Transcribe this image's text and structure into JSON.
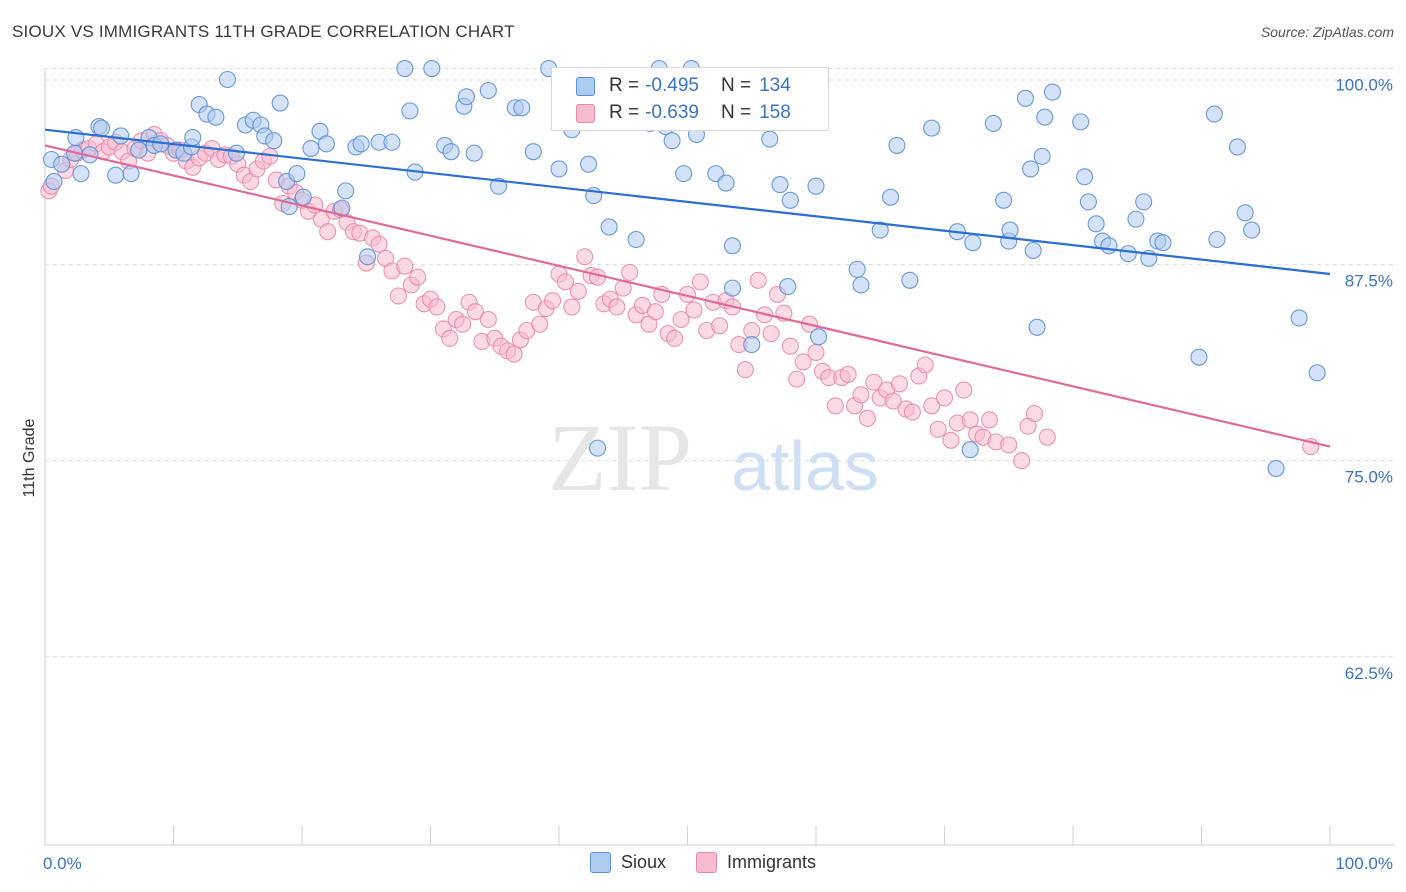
{
  "header": {
    "title": "SIOUX VS IMMIGRANTS 11TH GRADE CORRELATION CHART",
    "source": "Source: ZipAtlas.com"
  },
  "watermark": {
    "zip": "ZIP",
    "atlas": "atlas"
  },
  "legend": {
    "rows": [
      {
        "r_label": "R =",
        "r_value": "-0.495",
        "n_label": "N =",
        "n_value": "134"
      },
      {
        "r_label": "R =",
        "r_value": "-0.639",
        "n_label": "N =",
        "n_value": "158"
      }
    ]
  },
  "bottom_legend": {
    "items": [
      "Sioux",
      "Immigrants"
    ]
  },
  "colors": {
    "sioux_fill": "#aecbf0",
    "sioux_stroke": "#5b8fd6",
    "sioux_line": "#2a6fd1",
    "imm_fill": "#f7bcd0",
    "imm_stroke": "#e889aa",
    "imm_line": "#e06b98",
    "tick_label": "#3b73c8",
    "grid": "#dcdcdc"
  },
  "chart_data": {
    "type": "scatter",
    "title": "SIOUX VS IMMIGRANTS 11TH GRADE CORRELATION CHART",
    "xlabel": "",
    "ylabel": "11th Grade",
    "xlim": [
      0,
      100
    ],
    "ylim": [
      50.5,
      101.5
    ],
    "x_tick_labels": [
      "0.0%",
      "100.0%"
    ],
    "y_ticks": [
      62.5,
      75.0,
      87.5,
      100.0
    ],
    "y_tick_labels": [
      "62.5%",
      "75.0%",
      "87.5%",
      "100.0%"
    ],
    "grid": "horizontal dashed",
    "legend_placement": "top-center",
    "series": [
      {
        "name": "Sioux",
        "R": -0.495,
        "N": 134,
        "trend": {
          "x": [
            0,
            100
          ],
          "y": [
            96.1,
            86.9
          ]
        },
        "points": [
          [
            0.5,
            94.2
          ],
          [
            0.7,
            92.8
          ],
          [
            1.3,
            93.9
          ],
          [
            2.3,
            94.6
          ],
          [
            2.4,
            95.6
          ],
          [
            2.8,
            93.3
          ],
          [
            3.5,
            94.5
          ],
          [
            4.2,
            96.3
          ],
          [
            4.4,
            96.2
          ],
          [
            5.5,
            93.2
          ],
          [
            5.9,
            95.7
          ],
          [
            6.7,
            93.3
          ],
          [
            7.3,
            94.8
          ],
          [
            8.1,
            95.6
          ],
          [
            8.5,
            95.1
          ],
          [
            9.0,
            95.2
          ],
          [
            10.2,
            94.8
          ],
          [
            10.8,
            94.6
          ],
          [
            11.4,
            95.0
          ],
          [
            11.5,
            95.6
          ],
          [
            12.0,
            97.7
          ],
          [
            12.6,
            97.1
          ],
          [
            13.3,
            96.9
          ],
          [
            14.2,
            99.3
          ],
          [
            14.9,
            94.6
          ],
          [
            15.6,
            96.4
          ],
          [
            16.2,
            96.7
          ],
          [
            16.8,
            96.4
          ],
          [
            17.1,
            95.7
          ],
          [
            17.8,
            95.4
          ],
          [
            18.3,
            97.8
          ],
          [
            18.8,
            92.8
          ],
          [
            19.0,
            91.2
          ],
          [
            19.6,
            93.3
          ],
          [
            20.1,
            91.8
          ],
          [
            20.7,
            94.9
          ],
          [
            21.4,
            96.0
          ],
          [
            21.9,
            95.2
          ],
          [
            23.1,
            91.1
          ],
          [
            23.4,
            92.2
          ],
          [
            24.2,
            95.0
          ],
          [
            24.6,
            95.2
          ],
          [
            25.1,
            88.0
          ],
          [
            26.0,
            95.3
          ],
          [
            27.0,
            95.3
          ],
          [
            28.0,
            100.0
          ],
          [
            28.4,
            97.3
          ],
          [
            28.8,
            93.4
          ],
          [
            30.1,
            100.0
          ],
          [
            31.1,
            95.1
          ],
          [
            31.6,
            94.7
          ],
          [
            32.6,
            97.6
          ],
          [
            32.8,
            98.2
          ],
          [
            33.4,
            94.6
          ],
          [
            34.5,
            98.6
          ],
          [
            35.3,
            92.5
          ],
          [
            36.6,
            97.5
          ],
          [
            37.1,
            97.5
          ],
          [
            38.0,
            94.7
          ],
          [
            39.2,
            100.0
          ],
          [
            40.0,
            93.6
          ],
          [
            41.0,
            96.1
          ],
          [
            41.5,
            97.6
          ],
          [
            42.3,
            93.9
          ],
          [
            42.7,
            91.9
          ],
          [
            43.0,
            75.8
          ],
          [
            43.9,
            89.9
          ],
          [
            46.0,
            89.1
          ],
          [
            47.1,
            96.5
          ],
          [
            47.8,
            100.0
          ],
          [
            48.3,
            96.3
          ],
          [
            48.8,
            95.4
          ],
          [
            49.7,
            93.3
          ],
          [
            50.3,
            100.0
          ],
          [
            50.7,
            95.8
          ],
          [
            52.2,
            93.3
          ],
          [
            53.0,
            92.7
          ],
          [
            53.5,
            86.0
          ],
          [
            53.5,
            88.7
          ],
          [
            55.0,
            82.4
          ],
          [
            56.4,
            95.5
          ],
          [
            57.2,
            92.6
          ],
          [
            57.8,
            86.1
          ],
          [
            58.0,
            91.6
          ],
          [
            60.0,
            92.5
          ],
          [
            60.2,
            82.9
          ],
          [
            63.2,
            87.2
          ],
          [
            63.5,
            86.2
          ],
          [
            65.0,
            89.7
          ],
          [
            65.8,
            91.8
          ],
          [
            66.3,
            95.1
          ],
          [
            67.3,
            86.5
          ],
          [
            69.0,
            96.2
          ],
          [
            71.0,
            89.6
          ],
          [
            72.0,
            75.7
          ],
          [
            72.2,
            88.9
          ],
          [
            73.8,
            96.5
          ],
          [
            74.6,
            91.6
          ],
          [
            75.0,
            89.0
          ],
          [
            75.1,
            89.7
          ],
          [
            76.3,
            98.1
          ],
          [
            76.7,
            93.6
          ],
          [
            76.9,
            88.4
          ],
          [
            77.2,
            83.5
          ],
          [
            77.6,
            94.4
          ],
          [
            77.8,
            96.9
          ],
          [
            78.4,
            98.5
          ],
          [
            80.6,
            96.6
          ],
          [
            80.9,
            93.1
          ],
          [
            81.2,
            91.5
          ],
          [
            81.8,
            90.1
          ],
          [
            82.3,
            89.0
          ],
          [
            82.8,
            88.7
          ],
          [
            84.3,
            88.2
          ],
          [
            84.9,
            90.4
          ],
          [
            85.5,
            91.5
          ],
          [
            85.9,
            87.9
          ],
          [
            86.6,
            89.0
          ],
          [
            87.0,
            88.9
          ],
          [
            89.8,
            81.6
          ],
          [
            91.0,
            97.1
          ],
          [
            91.2,
            89.1
          ],
          [
            92.8,
            95.0
          ],
          [
            93.4,
            90.8
          ],
          [
            93.9,
            89.7
          ],
          [
            95.8,
            74.5
          ],
          [
            97.6,
            84.1
          ],
          [
            99.0,
            80.6
          ]
        ]
      },
      {
        "name": "Immigrants",
        "R": -0.639,
        "N": 158,
        "trend": {
          "x": [
            0,
            100
          ],
          "y": [
            95.1,
            75.9
          ]
        },
        "points": [
          [
            0.3,
            92.2
          ],
          [
            0.5,
            92.5
          ],
          [
            1.6,
            93.5
          ],
          [
            2.0,
            94.2
          ],
          [
            2.5,
            94.6
          ],
          [
            2.9,
            94.8
          ],
          [
            3.4,
            94.9
          ],
          [
            4.0,
            95.2
          ],
          [
            4.5,
            94.7
          ],
          [
            5.0,
            95.0
          ],
          [
            5.5,
            95.3
          ],
          [
            6.0,
            94.7
          ],
          [
            6.5,
            94.1
          ],
          [
            7.0,
            94.9
          ],
          [
            7.5,
            95.4
          ],
          [
            8.0,
            94.6
          ],
          [
            8.5,
            95.8
          ],
          [
            9.0,
            95.4
          ],
          [
            9.5,
            95.1
          ],
          [
            10.0,
            94.6
          ],
          [
            10.5,
            94.8
          ],
          [
            11.0,
            94.1
          ],
          [
            11.5,
            93.7
          ],
          [
            12.0,
            94.3
          ],
          [
            12.5,
            94.6
          ],
          [
            13.0,
            94.9
          ],
          [
            13.5,
            94.2
          ],
          [
            14.0,
            94.5
          ],
          [
            14.5,
            94.4
          ],
          [
            15.0,
            93.9
          ],
          [
            15.5,
            93.2
          ],
          [
            16.0,
            92.8
          ],
          [
            16.5,
            93.6
          ],
          [
            17.0,
            94.1
          ],
          [
            17.5,
            94.4
          ],
          [
            18.0,
            92.9
          ],
          [
            18.5,
            91.4
          ],
          [
            19.0,
            92.5
          ],
          [
            19.5,
            92.1
          ],
          [
            20.0,
            91.6
          ],
          [
            20.5,
            90.9
          ],
          [
            21.0,
            91.3
          ],
          [
            21.5,
            90.4
          ],
          [
            22.0,
            89.6
          ],
          [
            22.5,
            90.9
          ],
          [
            23.0,
            91.0
          ],
          [
            23.5,
            90.2
          ],
          [
            24.0,
            89.6
          ],
          [
            24.5,
            89.5
          ],
          [
            25.0,
            87.6
          ],
          [
            25.5,
            89.2
          ],
          [
            26.0,
            88.8
          ],
          [
            26.5,
            87.9
          ],
          [
            27.0,
            87.1
          ],
          [
            27.5,
            85.5
          ],
          [
            28.0,
            87.4
          ],
          [
            28.5,
            86.2
          ],
          [
            29.0,
            86.7
          ],
          [
            29.5,
            85.0
          ],
          [
            30.0,
            85.3
          ],
          [
            30.5,
            84.8
          ],
          [
            31.0,
            83.4
          ],
          [
            31.5,
            82.8
          ],
          [
            32.0,
            84.0
          ],
          [
            32.5,
            83.7
          ],
          [
            33.0,
            85.1
          ],
          [
            33.5,
            84.5
          ],
          [
            34.0,
            82.6
          ],
          [
            34.5,
            84.0
          ],
          [
            35.0,
            82.8
          ],
          [
            35.5,
            82.3
          ],
          [
            36.0,
            82.0
          ],
          [
            36.5,
            81.8
          ],
          [
            37.0,
            82.7
          ],
          [
            37.5,
            83.3
          ],
          [
            38.0,
            85.1
          ],
          [
            38.5,
            83.7
          ],
          [
            39.0,
            84.7
          ],
          [
            39.5,
            85.2
          ],
          [
            40.0,
            86.9
          ],
          [
            40.5,
            86.4
          ],
          [
            41.0,
            84.8
          ],
          [
            41.5,
            85.8
          ],
          [
            42.0,
            88.0
          ],
          [
            42.5,
            86.8
          ],
          [
            43.0,
            86.7
          ],
          [
            43.5,
            85.0
          ],
          [
            44.0,
            85.3
          ],
          [
            44.5,
            84.8
          ],
          [
            45.0,
            86.0
          ],
          [
            45.5,
            87.0
          ],
          [
            46.0,
            84.3
          ],
          [
            46.5,
            84.9
          ],
          [
            47.0,
            83.7
          ],
          [
            47.5,
            84.5
          ],
          [
            48.0,
            85.6
          ],
          [
            48.5,
            83.1
          ],
          [
            49.0,
            82.8
          ],
          [
            49.5,
            84.0
          ],
          [
            50.0,
            85.6
          ],
          [
            50.5,
            84.6
          ],
          [
            51.0,
            86.4
          ],
          [
            51.5,
            83.3
          ],
          [
            52.0,
            85.1
          ],
          [
            52.5,
            83.6
          ],
          [
            53.0,
            85.2
          ],
          [
            53.5,
            84.8
          ],
          [
            54.0,
            82.4
          ],
          [
            54.5,
            80.8
          ],
          [
            55.0,
            83.3
          ],
          [
            55.5,
            86.5
          ],
          [
            56.0,
            84.3
          ],
          [
            56.5,
            83.1
          ],
          [
            57.0,
            85.6
          ],
          [
            57.5,
            84.4
          ],
          [
            58.0,
            82.3
          ],
          [
            58.5,
            80.2
          ],
          [
            59.0,
            81.3
          ],
          [
            59.5,
            83.7
          ],
          [
            60.0,
            81.9
          ],
          [
            60.5,
            80.7
          ],
          [
            61.0,
            80.3
          ],
          [
            61.5,
            78.5
          ],
          [
            62.0,
            80.3
          ],
          [
            62.5,
            80.5
          ],
          [
            63.0,
            78.5
          ],
          [
            63.5,
            79.2
          ],
          [
            64.0,
            77.7
          ],
          [
            64.5,
            80.0
          ],
          [
            65.0,
            79.0
          ],
          [
            65.5,
            79.5
          ],
          [
            66.0,
            78.8
          ],
          [
            66.5,
            79.9
          ],
          [
            67.0,
            78.3
          ],
          [
            67.5,
            78.1
          ],
          [
            68.0,
            80.4
          ],
          [
            68.5,
            81.1
          ],
          [
            69.0,
            78.5
          ],
          [
            69.5,
            77.0
          ],
          [
            70.0,
            79.0
          ],
          [
            70.5,
            76.3
          ],
          [
            71.0,
            77.4
          ],
          [
            71.5,
            79.5
          ],
          [
            72.0,
            77.6
          ],
          [
            72.5,
            76.7
          ],
          [
            73.0,
            76.5
          ],
          [
            73.5,
            77.6
          ],
          [
            74.0,
            76.2
          ],
          [
            75.0,
            76.0
          ],
          [
            76.0,
            75.0
          ],
          [
            76.5,
            77.2
          ],
          [
            77.0,
            78.0
          ],
          [
            78.0,
            76.5
          ],
          [
            98.5,
            75.9
          ]
        ]
      }
    ]
  }
}
